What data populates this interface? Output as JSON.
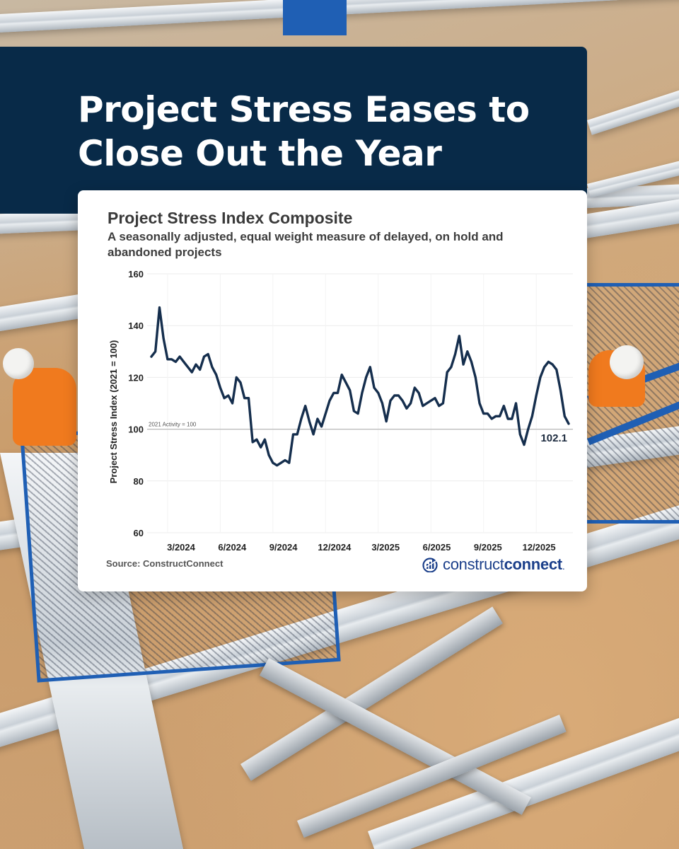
{
  "headline": "Project Stress Eases to Close Out the Year",
  "chart_data": {
    "type": "line",
    "title": "Project Stress Index Composite",
    "subtitle": "A seasonally adjusted, equal weight measure of delayed, on hold and abandoned projects",
    "ylabel": "Project Stress Index (2021 = 100)",
    "xlabel": "",
    "ylim": [
      60,
      160
    ],
    "yticks": [
      60,
      80,
      100,
      120,
      140,
      160
    ],
    "x_tick_labels": [
      "3/2024",
      "6/2024",
      "9/2024",
      "12/2024",
      "3/2025",
      "6/2025",
      "9/2025",
      "12/2025"
    ],
    "reference_line": {
      "value": 100,
      "label": "2021 Activity = 100"
    },
    "last_value_label": "102.1",
    "grid": true,
    "line_color": "#152e4d",
    "series": [
      {
        "values": [
          128,
          130,
          147,
          135,
          127,
          127,
          126,
          128,
          126,
          124,
          122,
          125,
          123,
          128,
          129,
          124,
          121,
          116,
          112,
          113,
          110,
          120,
          118,
          112,
          112,
          95,
          96,
          93,
          96,
          90,
          87,
          86,
          87,
          88,
          87,
          98,
          98,
          104,
          109,
          103,
          98,
          104,
          101,
          106,
          111,
          114,
          114,
          121,
          118,
          115,
          107,
          106,
          114,
          120,
          124,
          116,
          114,
          110,
          103,
          111,
          113,
          113,
          111,
          108,
          110,
          116,
          114,
          109,
          110,
          111,
          112,
          109,
          110,
          122,
          124,
          129,
          136,
          125,
          130,
          126,
          120,
          110,
          106,
          106,
          104,
          105,
          105,
          109,
          104,
          104,
          110,
          98,
          94,
          100,
          105,
          113,
          120,
          124,
          126,
          125,
          123,
          115,
          105,
          102.1
        ]
      }
    ]
  },
  "source": "Source: ConstructConnect",
  "logo": {
    "light": "construct",
    "bold": "connect",
    "color": "#1b3f8a"
  },
  "colors": {
    "panel": "#082a48",
    "card": "#ffffff",
    "line": "#152e4d"
  }
}
